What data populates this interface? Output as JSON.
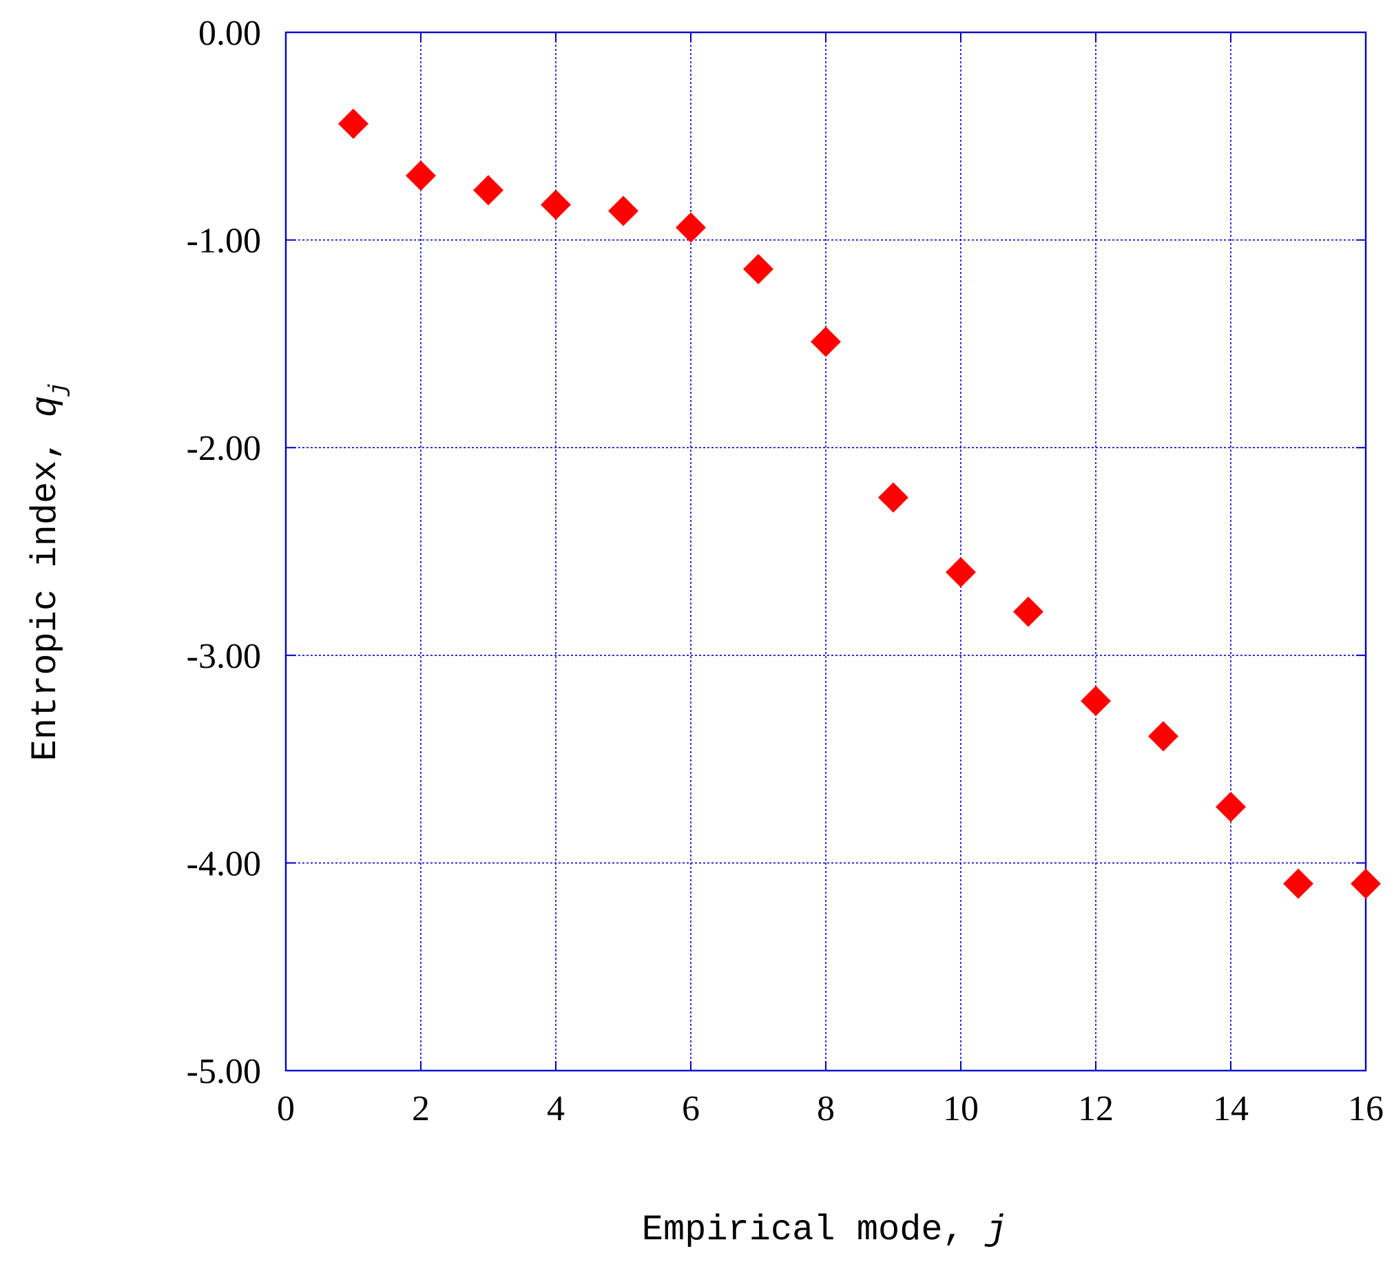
{
  "chart_data": {
    "type": "scatter",
    "title": "",
    "xlabel": "Empirical mode, ",
    "xlabel_var": "j",
    "ylabel": "Entropic index, ",
    "ylabel_var": "q",
    "ylabel_sub": "j",
    "xlim": [
      0,
      16
    ],
    "ylim": [
      -5,
      0
    ],
    "xticks": [
      0,
      2,
      4,
      6,
      8,
      10,
      12,
      14,
      16
    ],
    "xtick_labels": [
      "0",
      "2",
      "4",
      "6",
      "8",
      "10",
      "12",
      "14",
      "16"
    ],
    "yticks": [
      0,
      -1,
      -2,
      -3,
      -4,
      -5
    ],
    "ytick_labels": [
      "0.00",
      "-1.00",
      "-2.00",
      "-3.00",
      "-4.00",
      "-5.00"
    ],
    "grid": true,
    "marker": "diamond",
    "colors": {
      "marker": "#ff0000",
      "frame": "#0000cc",
      "grid": "#0000cc"
    },
    "series": [
      {
        "x": [
          1,
          2,
          3,
          4,
          5,
          6,
          7,
          8,
          9,
          10,
          11,
          12,
          13,
          14,
          15,
          16
        ],
        "y": [
          -0.44,
          -0.69,
          -0.76,
          -0.83,
          -0.86,
          -0.94,
          -1.14,
          -1.49,
          -2.24,
          -2.6,
          -2.79,
          -3.22,
          -3.39,
          -3.73,
          -4.1,
          -4.1
        ]
      }
    ]
  }
}
